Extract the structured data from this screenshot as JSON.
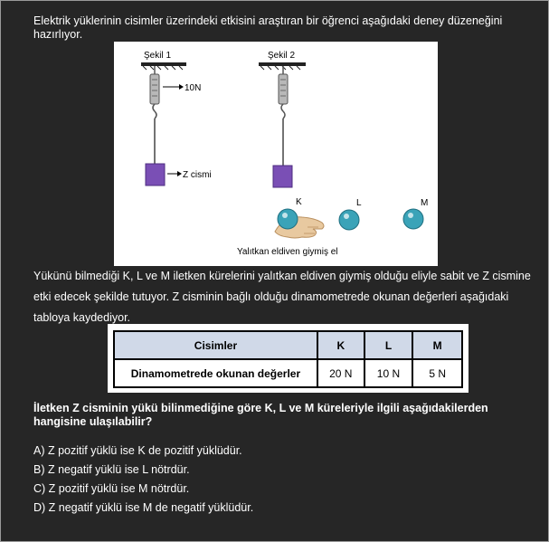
{
  "intro": "Elektrik yüklerinin cisimler üzerindeki etkisini araştıran bir öğrenci aşağıdaki deney düzeneğini hazırlıyor.",
  "figure": {
    "sekil1": "Şekil 1",
    "sekil2": "Şekil 2",
    "force_label": "10N",
    "object_label": "Z cismi",
    "sphere_k": "K",
    "sphere_l": "L",
    "sphere_m": "M",
    "caption": "Yalıtkan eldiven giymiş el",
    "colors": {
      "object": "#7a4fb5",
      "sphere": "#3aa3b8",
      "glove": "#e8c9a0"
    }
  },
  "paragraph": "Yükünü bilmediği K, L ve M iletken kürelerini yalıtkan eldiven giymiş olduğu eliyle sabit ve Z cismine etki edecek şekilde tutuyor. Z cisminin bağlı olduğu dinamometrede okunan değerleri aşağıdaki tabloya kaydediyor.",
  "table": {
    "header": [
      "Cisimler",
      "K",
      "L",
      "M"
    ],
    "row": [
      "Dinamometrede okunan değerler",
      "20 N",
      "10 N",
      "5 N"
    ]
  },
  "question": "İletken Z cisminin yükü bilinmediğine göre K, L ve M küreleriyle ilgili aşağıdakilerden hangisine ulaşılabilir?",
  "options": [
    "A) Z pozitif yüklü ise K de pozitif yüklüdür.",
    "B) Z negatif yüklü ise L nötrdür.",
    "C) Z pozitif yüklü ise M nötrdür.",
    "D) Z negatif yüklü ise M de negatif yüklüdür."
  ]
}
